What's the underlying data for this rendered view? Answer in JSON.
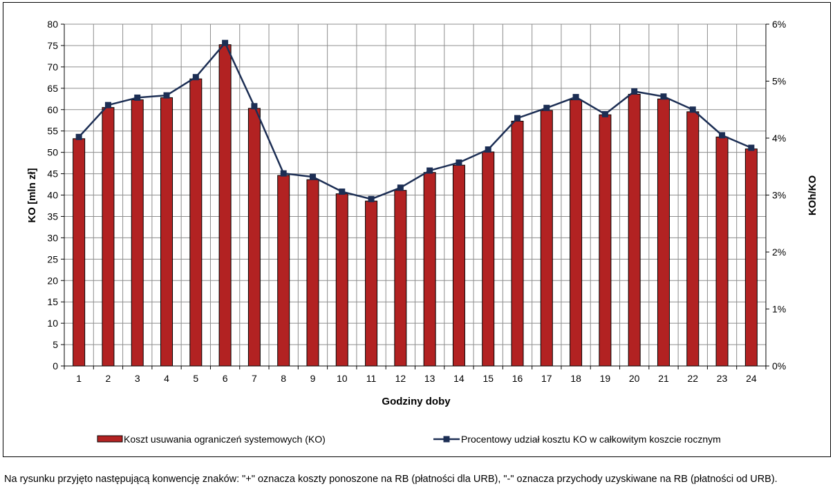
{
  "chart_data": {
    "type": "bar",
    "xlabel": "Godziny doby",
    "ylabel": "KO [mln zł]",
    "y2label": "KOh/KO",
    "categories": [
      "1",
      "2",
      "3",
      "4",
      "5",
      "6",
      "7",
      "8",
      "9",
      "10",
      "11",
      "12",
      "13",
      "14",
      "15",
      "16",
      "17",
      "18",
      "19",
      "20",
      "21",
      "22",
      "23",
      "24"
    ],
    "ylim": [
      0,
      80
    ],
    "yticks": [
      "0",
      "5",
      "10",
      "15",
      "20",
      "25",
      "30",
      "35",
      "40",
      "45",
      "50",
      "55",
      "60",
      "65",
      "70",
      "75",
      "80"
    ],
    "y2lim": [
      0,
      6
    ],
    "y2ticks": [
      "0%",
      "1%",
      "2%",
      "3%",
      "4%",
      "5%",
      "6%"
    ],
    "grid": true,
    "legend_position": "bottom",
    "series": [
      {
        "name": "Koszt usuwania ograniczeń systemowych (KO)",
        "type": "bar",
        "axis": "left",
        "color": "#b22222",
        "values": [
          53.2,
          60.5,
          62.3,
          62.8,
          67.2,
          75.2,
          60.3,
          44.6,
          43.6,
          40.3,
          38.6,
          41.1,
          45.3,
          47.0,
          50.1,
          57.3,
          59.8,
          62.3,
          58.8,
          63.6,
          62.5,
          59.5,
          53.6,
          50.8
        ]
      },
      {
        "name": "Procentowy udział kosztu KO w całkowitym koszcie rocznym",
        "type": "line",
        "axis": "right",
        "color": "#1c2e54",
        "marker": "square",
        "values": [
          4.02,
          4.58,
          4.71,
          4.75,
          5.07,
          5.67,
          4.56,
          3.38,
          3.32,
          3.06,
          2.93,
          3.13,
          3.43,
          3.57,
          3.8,
          4.35,
          4.53,
          4.72,
          4.42,
          4.82,
          4.73,
          4.5,
          4.05,
          3.83
        ]
      }
    ]
  },
  "note": {
    "text": "Na rysunku przyjęto następującą konwencję znaków: \"+\" oznacza koszty ponoszone na RB (płatności dla URB), \"-\" oznacza przychody uzyskiwane na RB (płatności od URB)."
  }
}
